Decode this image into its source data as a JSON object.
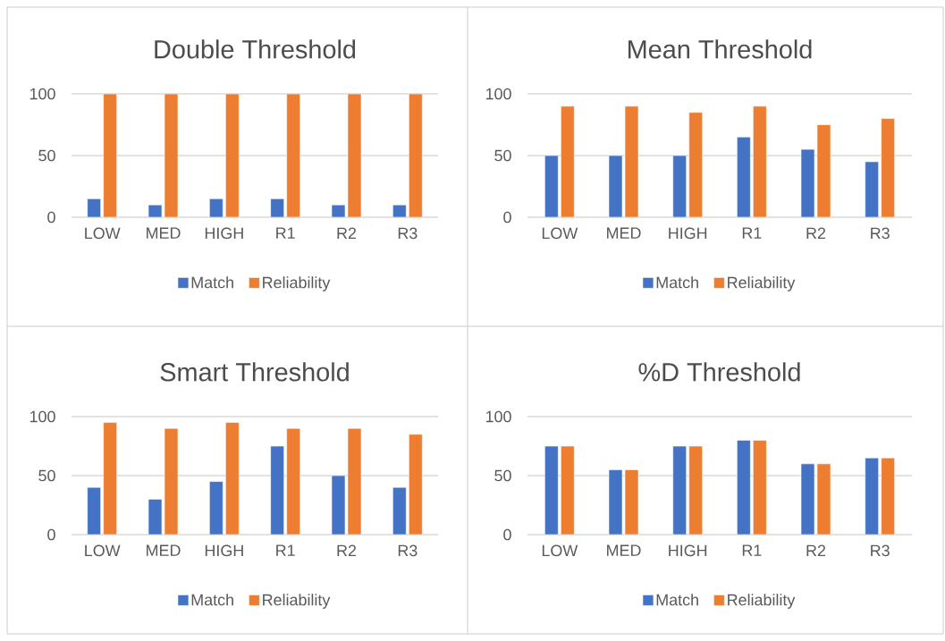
{
  "chart_data": [
    {
      "type": "bar",
      "title": "Double Threshold",
      "categories": [
        "LOW",
        "MED",
        "HIGH",
        "R1",
        "R2",
        "R3"
      ],
      "series": [
        {
          "name": "Match",
          "color": "#4472c4",
          "values": [
            15,
            10,
            15,
            15,
            10,
            10
          ]
        },
        {
          "name": "Reliability",
          "color": "#ed7d31",
          "values": [
            100,
            100,
            100,
            100,
            100,
            100
          ]
        }
      ],
      "ylim": [
        0,
        100
      ],
      "yticks": [
        0,
        50,
        100
      ],
      "grid": "y",
      "legend": "bottom"
    },
    {
      "type": "bar",
      "title": "Mean Threshold",
      "categories": [
        "LOW",
        "MED",
        "HIGH",
        "R1",
        "R2",
        "R3"
      ],
      "series": [
        {
          "name": "Match",
          "color": "#4472c4",
          "values": [
            50,
            50,
            50,
            65,
            55,
            45
          ]
        },
        {
          "name": "Reliability",
          "color": "#ed7d31",
          "values": [
            90,
            90,
            85,
            90,
            75,
            80
          ]
        }
      ],
      "ylim": [
        0,
        100
      ],
      "yticks": [
        0,
        50,
        100
      ],
      "grid": "y",
      "legend": "bottom"
    },
    {
      "type": "bar",
      "title": "Smart Threshold",
      "categories": [
        "LOW",
        "MED",
        "HIGH",
        "R1",
        "R2",
        "R3"
      ],
      "series": [
        {
          "name": "Match",
          "color": "#4472c4",
          "values": [
            40,
            30,
            45,
            75,
            50,
            40
          ]
        },
        {
          "name": "Reliability",
          "color": "#ed7d31",
          "values": [
            95,
            90,
            95,
            90,
            90,
            85
          ]
        }
      ],
      "ylim": [
        0,
        100
      ],
      "yticks": [
        0,
        50,
        100
      ],
      "grid": "y",
      "legend": "bottom"
    },
    {
      "type": "bar",
      "title": "%D Threshold",
      "categories": [
        "LOW",
        "MED",
        "HIGH",
        "R1",
        "R2",
        "R3"
      ],
      "series": [
        {
          "name": "Match",
          "color": "#4472c4",
          "values": [
            75,
            55,
            75,
            80,
            60,
            65
          ]
        },
        {
          "name": "Reliability",
          "color": "#ed7d31",
          "values": [
            75,
            55,
            75,
            80,
            60,
            65
          ]
        }
      ],
      "ylim": [
        0,
        100
      ],
      "yticks": [
        0,
        50,
        100
      ],
      "grid": "y",
      "legend": "bottom"
    }
  ]
}
